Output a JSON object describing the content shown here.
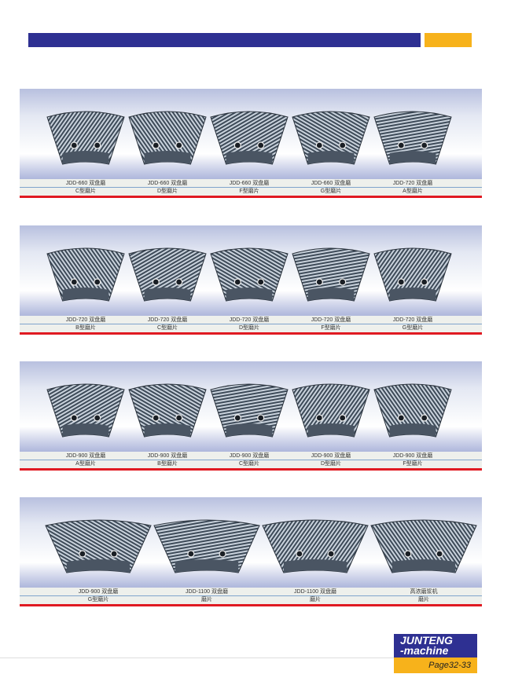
{
  "colors": {
    "brand_blue": "#2e3092",
    "brand_orange": "#f7b21b",
    "divider_red": "#e01a22"
  },
  "sections": [
    {
      "items": [
        {
          "model": "JDD-660 双盘磨",
          "type": "C型磨片"
        },
        {
          "model": "JDD-660 双盘磨",
          "type": "D型磨片"
        },
        {
          "model": "JDD-660 双盘磨",
          "type": "F型磨片"
        },
        {
          "model": "JDD-660 双盘磨",
          "type": "G型磨片"
        },
        {
          "model": "JDD-720 双盘磨",
          "type": "A型磨片"
        }
      ]
    },
    {
      "items": [
        {
          "model": "JDD-720 双盘磨",
          "type": "B型磨片"
        },
        {
          "model": "JDD-720 双盘磨",
          "type": "C型磨片"
        },
        {
          "model": "JDD-720 双盘磨",
          "type": "D型磨片"
        },
        {
          "model": "JDD-720 双盘磨",
          "type": "F型磨片"
        },
        {
          "model": "JDD-720 双盘磨",
          "type": "G型磨片"
        }
      ]
    },
    {
      "items": [
        {
          "model": "JDD-900 双盘磨",
          "type": "A型磨片"
        },
        {
          "model": "JDD-900 双盘磨",
          "type": "B型磨片"
        },
        {
          "model": "JDD-900 双盘磨",
          "type": "C型磨片"
        },
        {
          "model": "JDD-900 双盘磨",
          "type": "D型磨片"
        },
        {
          "model": "JDD-900 双盘磨",
          "type": "F型磨片"
        }
      ]
    },
    {
      "items": [
        {
          "model": "JDD-900 双盘磨",
          "type": "G型磨片"
        },
        {
          "model": "JDD-1100 双盘磨",
          "type": "磨片"
        },
        {
          "model": "JDD-1100 双盘磨",
          "type": "磨片"
        },
        {
          "model": "高浓磨浆机",
          "type": "磨片"
        }
      ]
    }
  ],
  "logo": {
    "line1": "JUNTENG",
    "line2": "-machine",
    "page": "Page32-33"
  }
}
